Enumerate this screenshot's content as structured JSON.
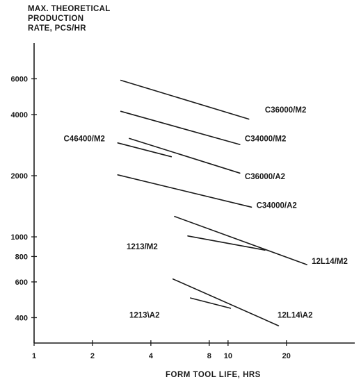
{
  "chart_data": {
    "type": "line",
    "ylabel_lines": [
      "MAX. THEORETICAL",
      "PRODUCTION",
      "RATE, PCS/HR"
    ],
    "xlabel": "FORM TOOL LIFE, HRS",
    "x_scale": "log",
    "y_scale": "log",
    "xlim": [
      1,
      45
    ],
    "ylim": [
      300,
      9000
    ],
    "x_ticks": [
      1,
      2,
      4,
      8,
      10,
      20
    ],
    "x_tick_labels": [
      "1",
      "2",
      "4",
      "8",
      "10",
      "20"
    ],
    "y_ticks": [
      400,
      600,
      800,
      1000,
      2000,
      4000,
      6000
    ],
    "y_tick_labels": [
      "400",
      "600",
      "800",
      "1000",
      "2000",
      "4000",
      "6000"
    ],
    "grid": false,
    "series": [
      {
        "name": "C36000/M2",
        "x": [
          2.8,
          12.8
        ],
        "y": [
          5900,
          3800
        ]
      },
      {
        "name": "C34000/M2",
        "x": [
          2.8,
          11.5
        ],
        "y": [
          4150,
          2850
        ]
      },
      {
        "name": "C46400/M2",
        "x": [
          2.7,
          5.1
        ],
        "y": [
          2900,
          2480
        ]
      },
      {
        "name": "C36000/A2",
        "x": [
          3.1,
          11.5
        ],
        "y": [
          3050,
          2060
        ]
      },
      {
        "name": "C34000/A2",
        "x": [
          2.7,
          13.2
        ],
        "y": [
          2020,
          1400
        ]
      },
      {
        "name": "1213/M2",
        "x": [
          6.2,
          15.5
        ],
        "y": [
          1010,
          860
        ]
      },
      {
        "name": "12L14/M2",
        "x": [
          5.3,
          25.5
        ],
        "y": [
          1260,
          730
        ]
      },
      {
        "name": "1213\\A2",
        "x": [
          6.4,
          10.3
        ],
        "y": [
          500,
          445
        ]
      },
      {
        "name": "12L14\\A2",
        "x": [
          5.2,
          18.2
        ],
        "y": [
          620,
          365
        ]
      }
    ],
    "labels": [
      {
        "text": "C36000/M2",
        "x": 15.5,
        "y": 4100
      },
      {
        "text": "C34000/M2",
        "x": 12.2,
        "y": 2950
      },
      {
        "text": "C46400/M2",
        "x": 1.42,
        "y": 2950
      },
      {
        "text": "C36000/A2",
        "x": 12.2,
        "y": 1920
      },
      {
        "text": "C34000/A2",
        "x": 14.0,
        "y": 1390
      },
      {
        "text": "1213/M2",
        "x": 3.0,
        "y": 870
      },
      {
        "text": "12L14/M2",
        "x": 27.0,
        "y": 735
      },
      {
        "text": "1213\\A2",
        "x": 3.1,
        "y": 400
      },
      {
        "text": "12L14\\A2",
        "x": 18.0,
        "y": 400
      }
    ]
  }
}
